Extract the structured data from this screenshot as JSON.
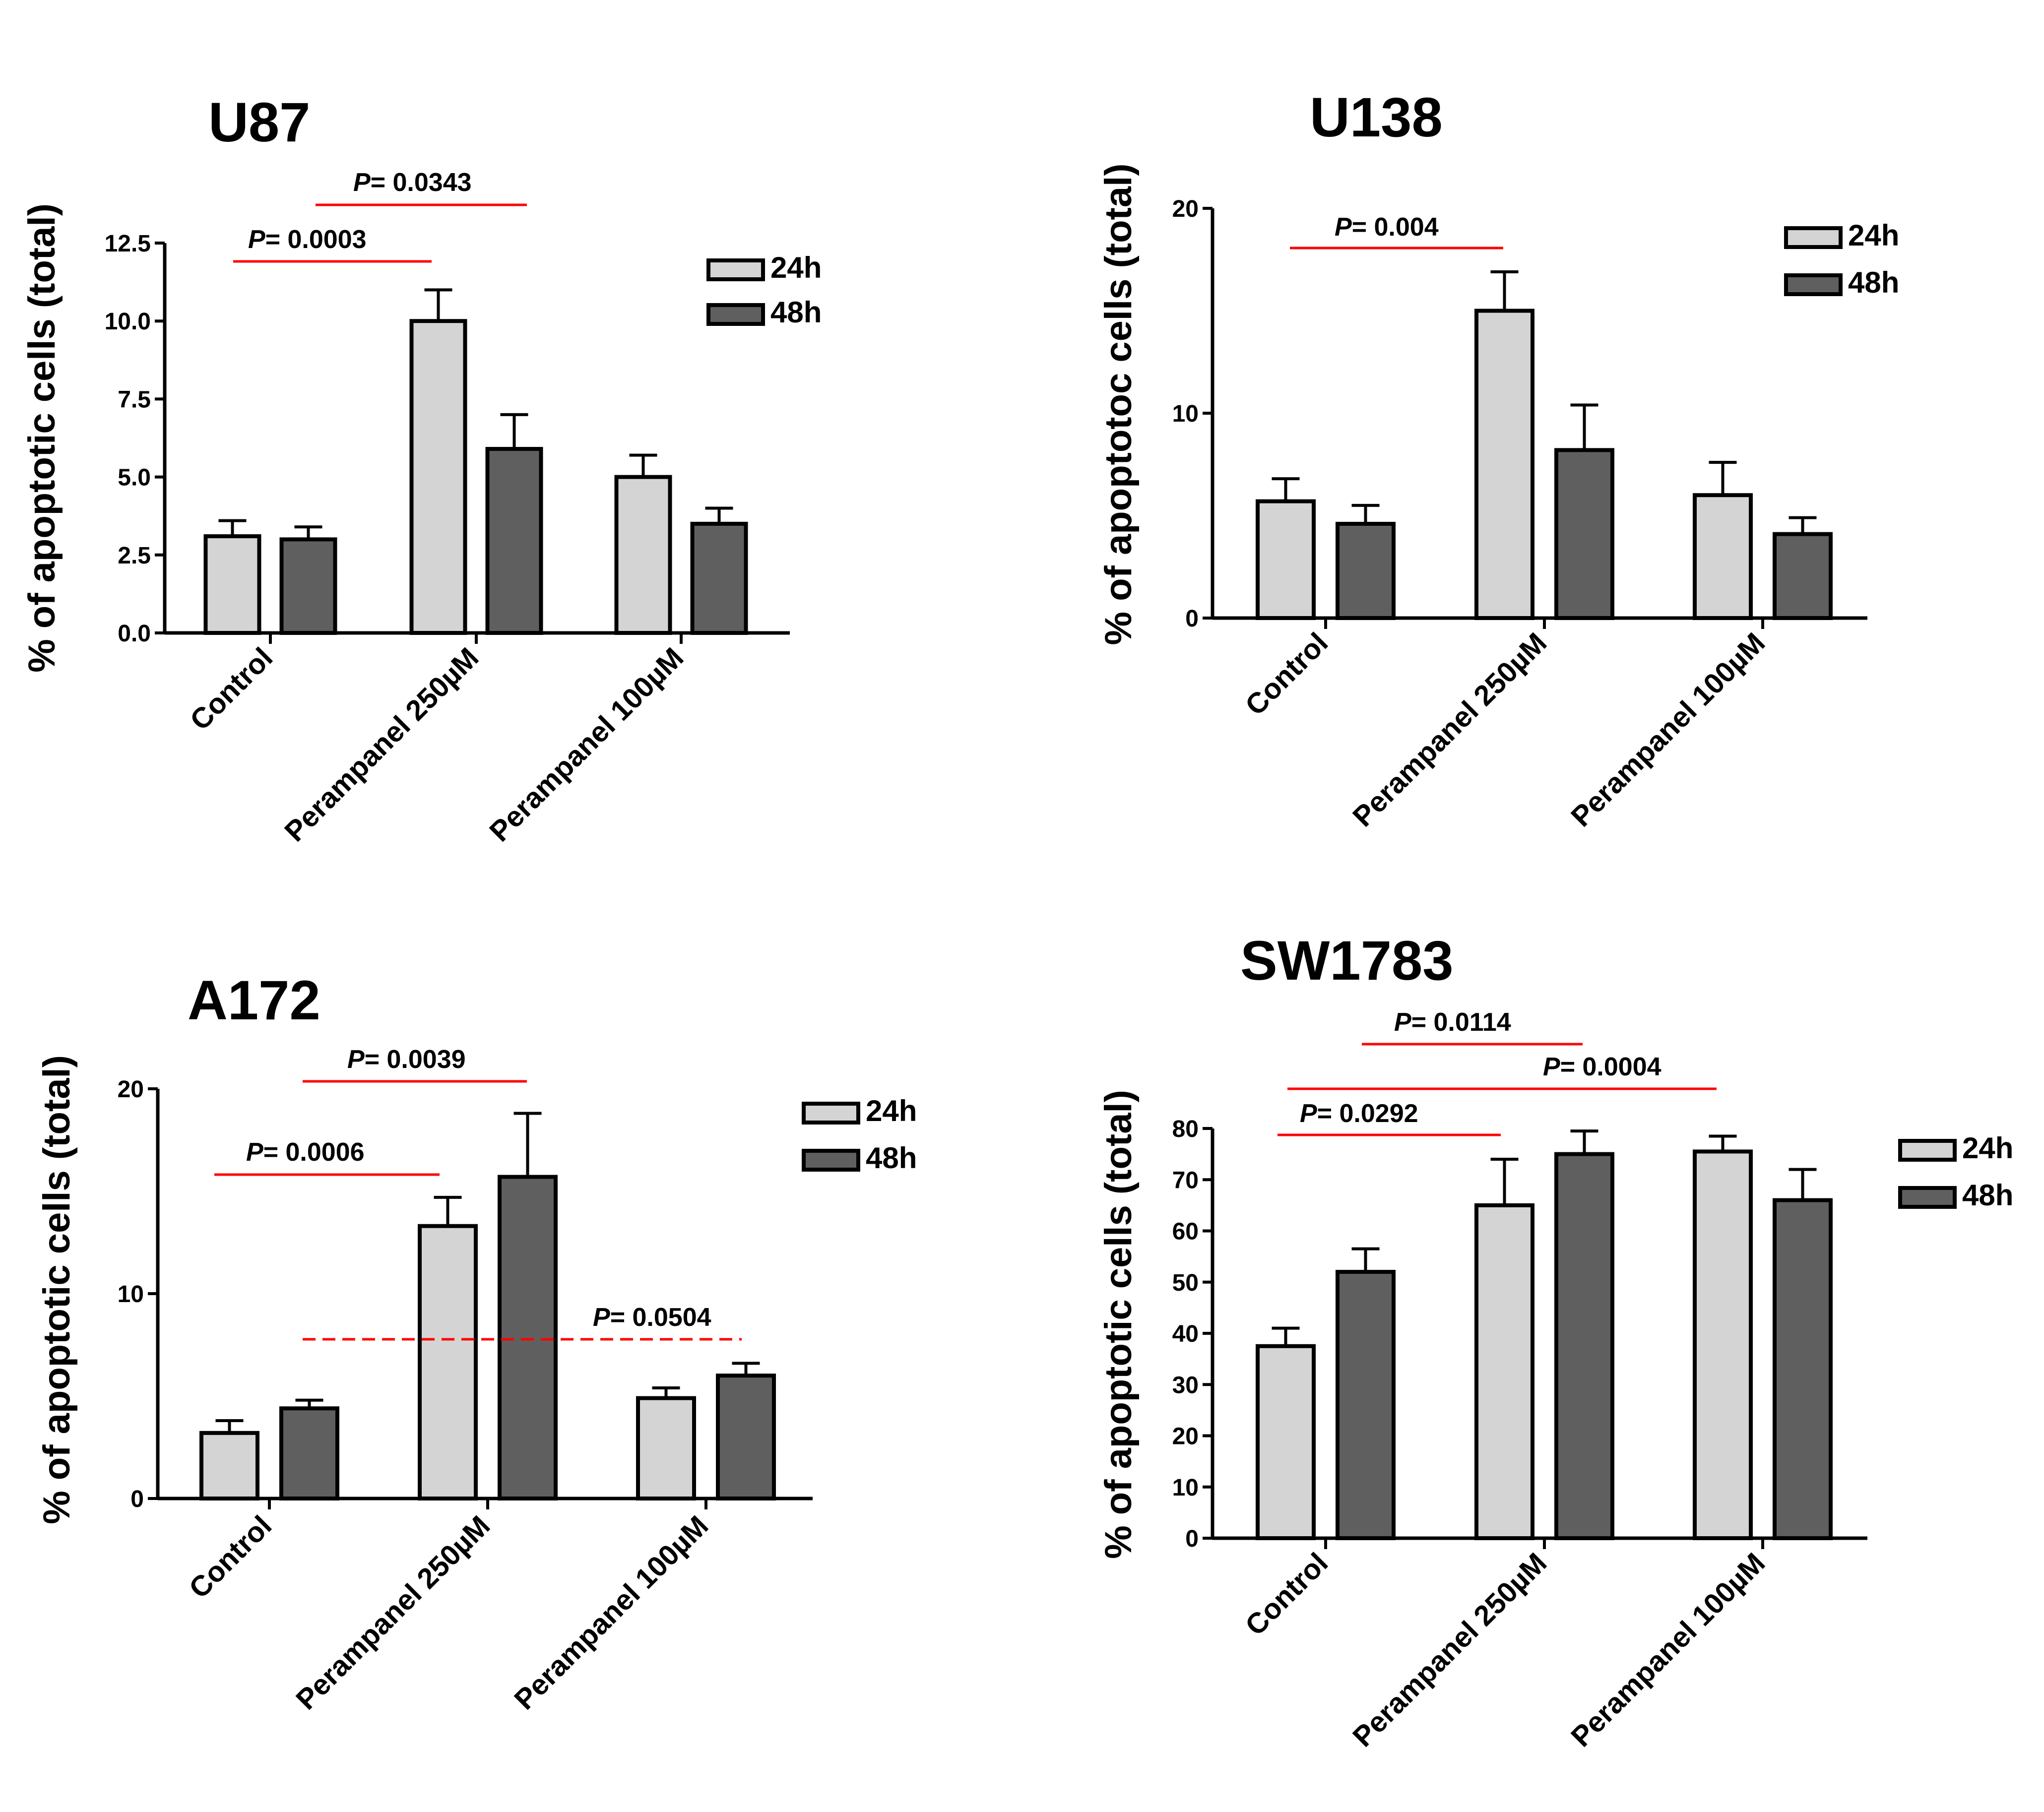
{
  "chart_data": [
    {
      "type": "bar",
      "title": "U87",
      "ylabel": "% of apoptotic cells (total)",
      "categories": [
        "Control",
        "Perampanel 250µM",
        "Perampanel 100µM"
      ],
      "ylim": [
        0,
        12.5
      ],
      "yticks": [
        "0.0",
        "2.5",
        "5.0",
        "7.5",
        "10.0",
        "12.5"
      ],
      "ytick_values": [
        0,
        2.5,
        5,
        7.5,
        10,
        12.5
      ],
      "series": [
        {
          "name": "24h",
          "values": [
            3.1,
            10.0,
            5.0
          ],
          "errors": [
            0.5,
            1.0,
            0.7
          ]
        },
        {
          "name": "48h",
          "values": [
            3.0,
            5.9,
            3.5
          ],
          "errors": [
            0.4,
            1.1,
            0.5
          ]
        }
      ],
      "colors": {
        "24h": "#d4d4d4",
        "48h": "#5f5f5f"
      },
      "annotations": [
        {
          "prefix": "P",
          "text": "= 0.0003",
          "dashed": false
        },
        {
          "prefix": "P",
          "text": "= 0.0343",
          "dashed": false
        }
      ]
    },
    {
      "type": "bar",
      "title": "U138",
      "ylabel": "% of apoptotoc cells (total)",
      "categories": [
        "Control",
        "Perampanel 250µM",
        "Perampanel 100µM"
      ],
      "ylim": [
        0,
        20
      ],
      "yticks": [
        "0",
        "10",
        "20"
      ],
      "ytick_values": [
        0,
        10,
        20
      ],
      "series": [
        {
          "name": "24h",
          "values": [
            5.7,
            15.0,
            6.0
          ],
          "errors": [
            1.1,
            1.9,
            1.6
          ]
        },
        {
          "name": "48h",
          "values": [
            4.6,
            8.2,
            4.1
          ],
          "errors": [
            0.9,
            2.2,
            0.8
          ]
        }
      ],
      "colors": {
        "24h": "#d4d4d4",
        "48h": "#5f5f5f"
      },
      "annotations": [
        {
          "prefix": "P",
          "text": "= 0.004",
          "dashed": false
        }
      ]
    },
    {
      "type": "bar",
      "title": "A172",
      "ylabel": "% of apoptotic cells (total)",
      "categories": [
        "Control",
        "Perampanel 250µM",
        "Perampanel 100µM"
      ],
      "ylim": [
        0,
        20
      ],
      "yticks": [
        "0",
        "10",
        "20"
      ],
      "ytick_values": [
        0,
        10,
        20
      ],
      "series": [
        {
          "name": "24h",
          "values": [
            3.2,
            13.3,
            4.9
          ],
          "errors": [
            0.6,
            1.4,
            0.5
          ]
        },
        {
          "name": "48h",
          "values": [
            4.4,
            15.7,
            6.0
          ],
          "errors": [
            0.4,
            3.1,
            0.6
          ]
        }
      ],
      "colors": {
        "24h": "#d4d4d4",
        "48h": "#5f5f5f"
      },
      "annotations": [
        {
          "prefix": "P",
          "text": "= 0.0006",
          "dashed": false
        },
        {
          "prefix": "P",
          "text": "= 0.0039",
          "dashed": false
        },
        {
          "prefix": "P",
          "text": "= 0.0504",
          "dashed": true
        }
      ]
    },
    {
      "type": "bar",
      "title": "SW1783",
      "ylabel": "% of apoptotic cells (total)",
      "categories": [
        "Control",
        "Perampanel 250µM",
        "Perampanel 100µM"
      ],
      "ylim": [
        0,
        80
      ],
      "yticks": [
        "0",
        "10",
        "20",
        "30",
        "40",
        "50",
        "60",
        "70",
        "80"
      ],
      "ytick_values": [
        0,
        10,
        20,
        30,
        40,
        50,
        60,
        70,
        80
      ],
      "series": [
        {
          "name": "24h",
          "values": [
            37.5,
            65.0,
            75.5
          ],
          "errors": [
            3.5,
            9.0,
            3.0
          ]
        },
        {
          "name": "48h",
          "values": [
            52.0,
            75.0,
            66.0
          ],
          "errors": [
            4.5,
            4.5,
            6.0
          ]
        }
      ],
      "colors": {
        "24h": "#d4d4d4",
        "48h": "#5f5f5f"
      },
      "annotations": [
        {
          "prefix": "P",
          "text": "= 0.0292",
          "dashed": false
        },
        {
          "prefix": "P",
          "text": "= 0.0114",
          "dashed": false
        },
        {
          "prefix": "P",
          "text": "= 0.0004",
          "dashed": false
        }
      ]
    }
  ]
}
